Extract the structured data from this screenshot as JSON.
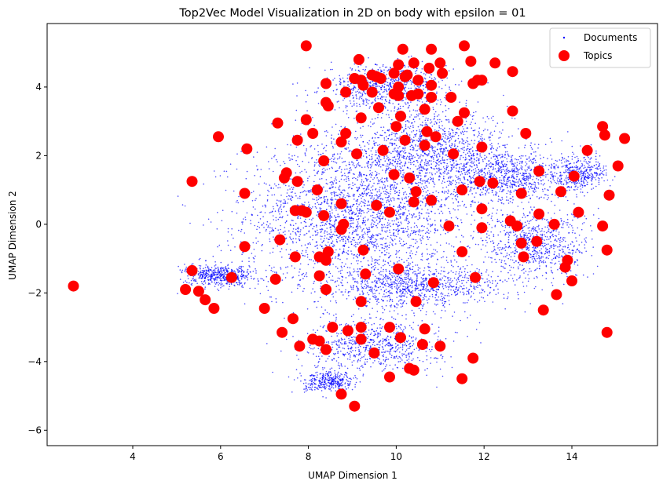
{
  "chart_data": {
    "type": "scatter",
    "title": "Top2Vec Model Visualization in 2D on body with epsilon = 01",
    "xlabel": "UMAP Dimension 1",
    "ylabel": "UMAP Dimension 2",
    "xlim": [
      2.05,
      15.95
    ],
    "ylim": [
      -6.45,
      5.85
    ],
    "xticks": [
      4,
      6,
      8,
      10,
      12,
      14
    ],
    "yticks": [
      -6,
      -4,
      -2,
      0,
      2,
      4
    ],
    "legend_position": "upper-right",
    "grid": false,
    "colors": {
      "documents": "#0000ff",
      "topics": "#ff0000"
    },
    "series": [
      {
        "name": "Documents",
        "marker": "small-dot",
        "density_regions": [
          {
            "cx": 9.2,
            "cy": 0.3,
            "sx": 2.6,
            "sy": 2.2,
            "weight": 30
          },
          {
            "cx": 10.8,
            "cy": 2.2,
            "sx": 1.8,
            "sy": 1.1,
            "weight": 12
          },
          {
            "cx": 9.8,
            "cy": 4.0,
            "sx": 1.4,
            "sy": 0.7,
            "weight": 8
          },
          {
            "cx": 12.5,
            "cy": 1.4,
            "sx": 1.5,
            "sy": 0.8,
            "weight": 10
          },
          {
            "cx": 13.2,
            "cy": -0.6,
            "sx": 1.2,
            "sy": 1.0,
            "weight": 8
          },
          {
            "cx": 6.0,
            "cy": -1.5,
            "sx": 0.8,
            "sy": 0.3,
            "weight": 6
          },
          {
            "cx": 9.5,
            "cy": -3.5,
            "sx": 1.5,
            "sy": 0.8,
            "weight": 8
          },
          {
            "cx": 10.5,
            "cy": -1.8,
            "sx": 2.0,
            "sy": 0.6,
            "weight": 10
          },
          {
            "cx": 8.5,
            "cy": -4.6,
            "sx": 0.6,
            "sy": 0.3,
            "weight": 4
          },
          {
            "cx": 14.2,
            "cy": 1.5,
            "sx": 0.6,
            "sy": 0.5,
            "weight": 4
          }
        ]
      },
      {
        "name": "Topics",
        "marker": "large-dot",
        "x": [
          7.95,
          10.15,
          11.55,
          10.8,
          9.15,
          10.05,
          10.4,
          11.7,
          11.0,
          12.25,
          12.65,
          10.25,
          9.95,
          10.75,
          11.95,
          9.45,
          9.55,
          9.65,
          10.2,
          10.5,
          11.05,
          11.85,
          8.4,
          9.2,
          9.05,
          10.05,
          11.75,
          8.85,
          9.25,
          9.45,
          11.25,
          10.8,
          8.4,
          9.95,
          10.05,
          10.35,
          10.5,
          8.45,
          9.6,
          10.65,
          10.8,
          12.65,
          10.1,
          11.55,
          9.2,
          7.95,
          11.4,
          10.0,
          7.3,
          8.1,
          10.7,
          10.9,
          12.95,
          8.85,
          8.75,
          5.95,
          10.2,
          7.75,
          10.65,
          11.95,
          6.6,
          9.7,
          11.3,
          8.35,
          14.35,
          14.75,
          14.7,
          15.2,
          15.05,
          9.1,
          7.5,
          9.95,
          7.75,
          7.45,
          13.25,
          11.9,
          8.2,
          6.55,
          10.45,
          10.3,
          12.2,
          11.5,
          5.35,
          13.75,
          14.05,
          12.85,
          7.85,
          10.8,
          9.55,
          14.85,
          8.75,
          9.85,
          10.4,
          7.7,
          7.95,
          13.25,
          8.35,
          11.95,
          12.6,
          12.75,
          13.6,
          8.8,
          11.2,
          11.95,
          8.75,
          14.15,
          14.7,
          12.85,
          7.35,
          9.25,
          11.5,
          8.45,
          14.8,
          6.55,
          7.7,
          8.25,
          8.4,
          13.2,
          12.9,
          10.05,
          9.3,
          13.9,
          13.85,
          14.0,
          11.8,
          6.25,
          5.35,
          7.25,
          10.85,
          8.25,
          8.4,
          13.65,
          5.2,
          10.45,
          9.2,
          5.65,
          5.5,
          7.0,
          5.85,
          13.35,
          7.65,
          8.55,
          9.2,
          9.85,
          10.65,
          14.8,
          7.4,
          8.9,
          9.2,
          10.1,
          8.1,
          8.25,
          7.8,
          8.4,
          9.5,
          10.6,
          11.0,
          11.75,
          10.4,
          10.3,
          9.85,
          11.5,
          8.75,
          9.05,
          2.65
        ],
        "y": [
          5.2,
          5.1,
          5.2,
          5.1,
          4.8,
          4.65,
          4.7,
          4.75,
          4.7,
          4.7,
          4.45,
          4.35,
          4.4,
          4.55,
          4.2,
          4.35,
          4.3,
          4.25,
          4.3,
          4.2,
          4.4,
          4.2,
          4.1,
          4.2,
          4.25,
          4.0,
          4.1,
          3.85,
          4.05,
          3.85,
          3.7,
          4.05,
          3.55,
          3.8,
          3.75,
          3.75,
          3.8,
          3.45,
          3.4,
          3.35,
          3.7,
          3.3,
          3.15,
          3.25,
          3.1,
          3.05,
          3.0,
          2.85,
          2.95,
          2.65,
          2.7,
          2.55,
          2.65,
          2.65,
          2.4,
          2.55,
          2.45,
          2.45,
          2.3,
          2.25,
          2.2,
          2.15,
          2.05,
          1.85,
          2.15,
          2.6,
          2.85,
          2.5,
          1.7,
          2.05,
          1.5,
          1.45,
          1.25,
          1.35,
          1.55,
          1.25,
          1.0,
          0.9,
          0.95,
          1.35,
          1.2,
          1.0,
          1.25,
          0.95,
          1.4,
          0.9,
          0.4,
          0.7,
          0.55,
          0.85,
          0.6,
          0.35,
          0.65,
          0.4,
          0.35,
          0.3,
          0.25,
          0.45,
          0.1,
          -0.05,
          0.0,
          0.0,
          -0.05,
          -0.1,
          -0.15,
          0.35,
          -0.05,
          -0.55,
          -0.45,
          -0.75,
          -0.8,
          -0.8,
          -0.75,
          -0.65,
          -0.95,
          -0.95,
          -1.05,
          -0.5,
          -0.95,
          -1.3,
          -1.45,
          -1.05,
          -1.25,
          -1.65,
          -1.55,
          -1.55,
          -1.35,
          -1.6,
          -1.7,
          -1.5,
          -1.9,
          -2.05,
          -1.9,
          -2.25,
          -2.25,
          -2.2,
          -1.95,
          -2.45,
          -2.45,
          -2.5,
          -2.75,
          -3.0,
          -3.0,
          -3.0,
          -3.05,
          -3.15,
          -3.15,
          -3.1,
          -3.35,
          -3.3,
          -3.35,
          -3.4,
          -3.55,
          -3.65,
          -3.75,
          -3.5,
          -3.55,
          -3.9,
          -4.25,
          -4.2,
          -4.45,
          -4.5,
          -4.95,
          -5.3,
          -1.8
        ]
      }
    ]
  }
}
